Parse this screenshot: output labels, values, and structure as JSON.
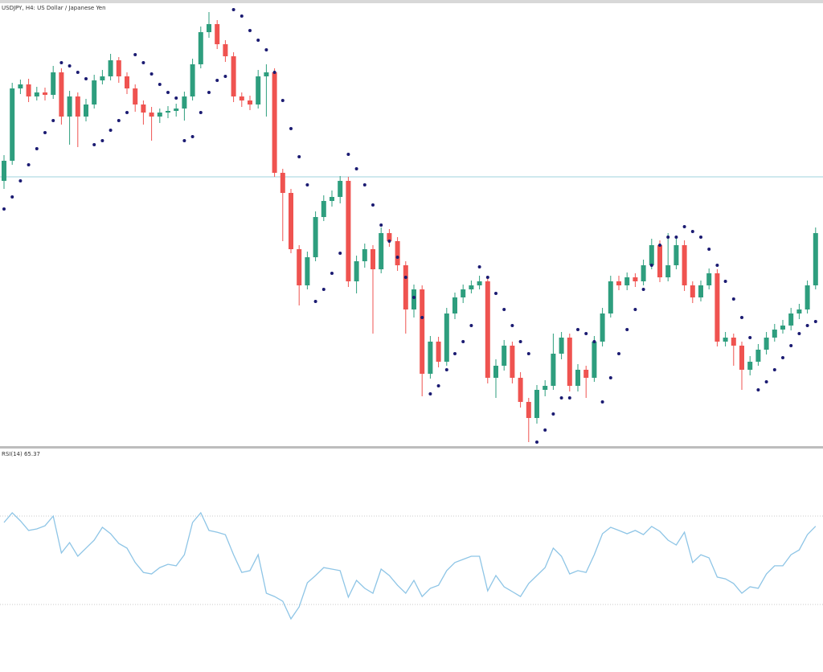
{
  "chart_data": [
    {
      "type": "candlestick",
      "title": "USDJPY, H4: US Dollar / Japanese Yen",
      "up_color": "#2e9e7e",
      "down_color": "#ef5350",
      "ylim": [
        0,
        550
      ],
      "open": [
        330,
        355,
        445,
        450,
        435,
        440,
        437,
        465,
        410,
        435,
        410,
        425,
        455,
        460,
        480,
        460,
        445,
        425,
        415,
        410,
        415,
        417,
        420,
        435,
        475,
        515,
        525,
        500,
        485,
        435,
        430,
        425,
        460,
        465,
        340,
        315,
        245,
        200,
        235,
        285,
        305,
        310,
        330,
        205,
        230,
        245,
        220,
        265,
        255,
        225,
        170,
        195,
        90,
        130,
        105,
        165,
        185,
        195,
        200,
        205,
        85,
        100,
        125,
        85,
        55,
        35,
        70,
        75,
        115,
        135,
        75,
        95,
        85,
        130,
        165,
        205,
        200,
        210,
        205,
        225,
        250,
        210,
        225,
        250,
        200,
        185,
        200,
        215,
        130,
        135,
        125,
        95,
        105,
        120,
        135,
        145,
        150,
        165,
        170,
        200
      ],
      "high": [
        362,
        452,
        456,
        457,
        447,
        446,
        473,
        470,
        442,
        440,
        432,
        462,
        468,
        488,
        484,
        465,
        450,
        430,
        422,
        420,
        423,
        426,
        441,
        482,
        522,
        540,
        530,
        505,
        490,
        440,
        436,
        468,
        475,
        470,
        345,
        320,
        250,
        242,
        292,
        312,
        318,
        336,
        335,
        237,
        252,
        250,
        272,
        270,
        260,
        230,
        201,
        200,
        137,
        136,
        172,
        191,
        201,
        206,
        212,
        210,
        108,
        132,
        130,
        92,
        60,
        76,
        82,
        140,
        142,
        140,
        102,
        100,
        137,
        172,
        212,
        212,
        216,
        215,
        232,
        258,
        256,
        265,
        258,
        256,
        205,
        206,
        221,
        220,
        142,
        140,
        130,
        112,
        127,
        142,
        152,
        157,
        172,
        177,
        206,
        272
      ],
      "low": [
        320,
        350,
        438,
        428,
        430,
        430,
        432,
        400,
        375,
        372,
        404,
        420,
        450,
        455,
        452,
        438,
        416,
        400,
        380,
        402,
        408,
        410,
        405,
        430,
        470,
        508,
        494,
        478,
        428,
        422,
        418,
        420,
        410,
        335,
        255,
        240,
        175,
        195,
        230,
        280,
        298,
        302,
        198,
        190,
        222,
        140,
        215,
        248,
        218,
        140,
        160,
        62,
        84,
        98,
        100,
        158,
        178,
        190,
        195,
        78,
        60,
        94,
        78,
        48,
        5,
        28,
        62,
        70,
        108,
        68,
        68,
        60,
        80,
        124,
        160,
        194,
        194,
        198,
        200,
        220,
        204,
        205,
        220,
        193,
        178,
        180,
        195,
        124,
        124,
        100,
        70,
        88,
        100,
        114,
        130,
        140,
        144,
        158,
        165,
        195
      ],
      "close": [
        355,
        445,
        450,
        435,
        440,
        437,
        465,
        410,
        435,
        410,
        425,
        455,
        460,
        480,
        460,
        445,
        425,
        415,
        410,
        415,
        417,
        420,
        435,
        475,
        515,
        525,
        500,
        485,
        435,
        430,
        425,
        460,
        465,
        340,
        315,
        245,
        200,
        235,
        285,
        305,
        310,
        330,
        205,
        230,
        245,
        220,
        265,
        255,
        225,
        170,
        195,
        90,
        130,
        105,
        165,
        185,
        195,
        200,
        205,
        85,
        100,
        125,
        85,
        55,
        35,
        70,
        75,
        115,
        135,
        75,
        95,
        85,
        130,
        165,
        205,
        200,
        210,
        205,
        225,
        250,
        210,
        225,
        250,
        200,
        185,
        200,
        215,
        130,
        135,
        125,
        95,
        105,
        120,
        135,
        145,
        150,
        165,
        170,
        200,
        265
      ],
      "sar": [
        295,
        310,
        330,
        350,
        370,
        390,
        405,
        477,
        473,
        465,
        457,
        375,
        380,
        393,
        405,
        415,
        487,
        477,
        463,
        450,
        440,
        433,
        380,
        385,
        415,
        440,
        455,
        460,
        543,
        535,
        517,
        505,
        493,
        465,
        430,
        395,
        360,
        325,
        180,
        195,
        215,
        240,
        363,
        345,
        325,
        300,
        275,
        255,
        235,
        210,
        185,
        160,
        65,
        75,
        95,
        115,
        130,
        150,
        223,
        210,
        190,
        170,
        150,
        130,
        115,
        5,
        20,
        40,
        60,
        60,
        145,
        140,
        130,
        55,
        85,
        115,
        145,
        170,
        195,
        225,
        250,
        260,
        260,
        273,
        267,
        260,
        245,
        225,
        205,
        183,
        160,
        135,
        70,
        80,
        95,
        110,
        125,
        140,
        150,
        155
      ],
      "sar_color": "#1b1b72",
      "hline": 335,
      "hline_color": "#9fd3dc"
    },
    {
      "type": "line",
      "title": "RSI(14) 65.37",
      "color": "#8ec5e6",
      "ylim": [
        0,
        100
      ],
      "levels": [
        70,
        30
      ],
      "values": [
        67.1,
        71.5,
        67.8,
        63.5,
        64.2,
        65.6,
        70.0,
        53.3,
        58.0,
        51.8,
        55.5,
        59.1,
        64.9,
        62.0,
        57.6,
        55.5,
        49.0,
        44.5,
        43.8,
        46.7,
        48.2,
        47.5,
        52.5,
        67.1,
        71.5,
        63.5,
        62.7,
        61.6,
        52.5,
        44.5,
        45.3,
        52.5,
        35.1,
        33.6,
        31.5,
        23.5,
        28.9,
        39.8,
        43.1,
        46.7,
        46.0,
        45.3,
        33.3,
        40.9,
        37.3,
        35.1,
        46.0,
        43.1,
        38.7,
        35.1,
        40.9,
        33.6,
        37.3,
        38.7,
        45.3,
        49.0,
        50.4,
        51.8,
        51.8,
        36.2,
        43.1,
        38.0,
        35.8,
        33.6,
        39.5,
        43.1,
        46.7,
        55.5,
        51.8,
        43.8,
        45.3,
        44.5,
        52.5,
        62.0,
        64.9,
        63.5,
        62.0,
        63.5,
        61.6,
        65.3,
        63.1,
        59.1,
        56.9,
        62.7,
        49.0,
        52.5,
        51.1,
        42.4,
        41.6,
        39.5,
        35.1,
        38.0,
        37.3,
        43.8,
        47.5,
        47.5,
        52.5,
        54.7,
        61.6,
        65.37
      ]
    }
  ]
}
